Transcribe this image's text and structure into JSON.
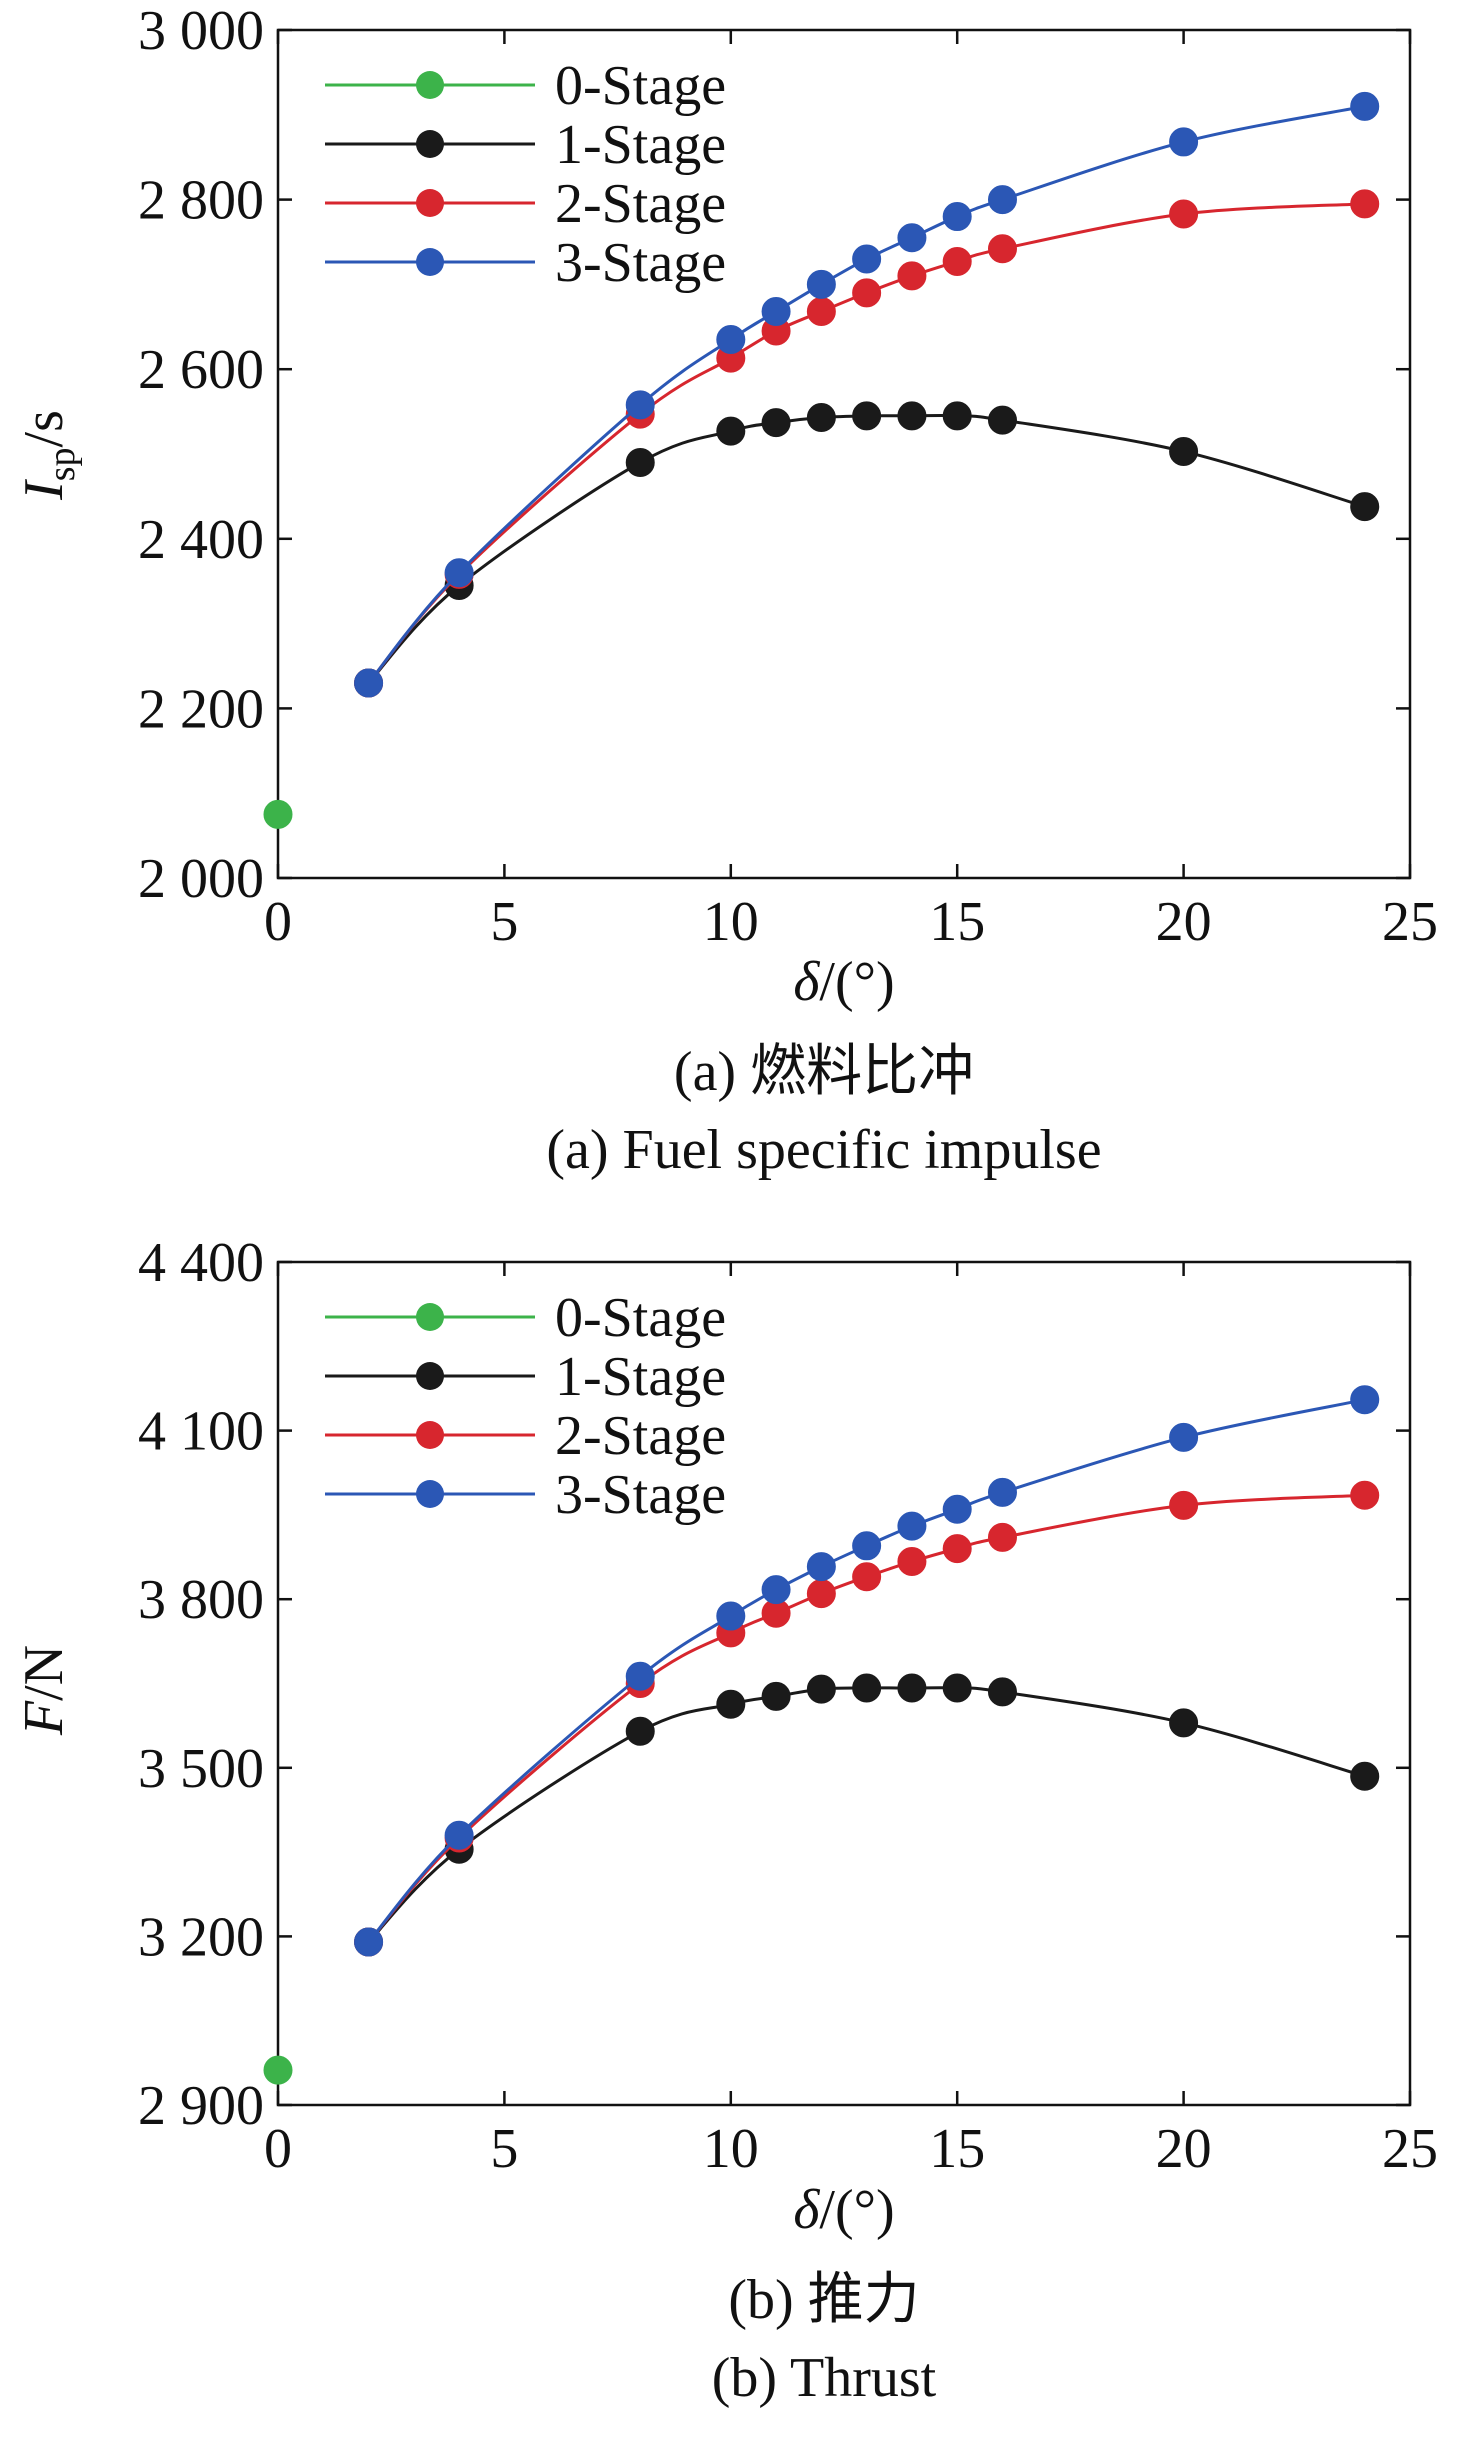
{
  "chart_data": [
    {
      "type": "line",
      "ylabel_main": "I",
      "ylabel_sub": "sp",
      "ylabel_unit": "/s",
      "xlabel_symbol": "δ",
      "xlabel_unit": "/(°)",
      "xlim": [
        0,
        25
      ],
      "ylim": [
        2000,
        3000
      ],
      "xticks": [
        0,
        5,
        10,
        15,
        20,
        25
      ],
      "yticks": [
        2000,
        2200,
        2400,
        2600,
        2800,
        3000
      ],
      "ytick_labels": [
        "2 000",
        "2 200",
        "2 400",
        "2 600",
        "2 800",
        "3 000"
      ],
      "legend_position": "top-left",
      "caption_cn": "(a) 燃料比冲",
      "caption_en": "(a) Fuel specific impulse",
      "series": [
        {
          "name": "0-Stage",
          "color": "#3cb34a",
          "x": [
            0
          ],
          "y": [
            2075
          ]
        },
        {
          "name": "1-Stage",
          "color": "#1a1a1a",
          "x": [
            2,
            4,
            8,
            10,
            11,
            12,
            13,
            14,
            15,
            16,
            20,
            24
          ],
          "y": [
            2230,
            2345,
            2490,
            2527,
            2537,
            2543,
            2545,
            2545,
            2545,
            2540,
            2503,
            2438
          ]
        },
        {
          "name": "2-Stage",
          "color": "#d7262e",
          "x": [
            2,
            4,
            8,
            10,
            11,
            12,
            13,
            14,
            15,
            16,
            20,
            24
          ],
          "y": [
            2230,
            2358,
            2547,
            2613,
            2645,
            2668,
            2690,
            2710,
            2727,
            2742,
            2783,
            2795
          ]
        },
        {
          "name": "3-Stage",
          "color": "#2b57b5",
          "x": [
            2,
            4,
            8,
            10,
            11,
            12,
            13,
            14,
            15,
            16,
            20,
            24
          ],
          "y": [
            2230,
            2360,
            2558,
            2635,
            2668,
            2700,
            2730,
            2755,
            2780,
            2800,
            2868,
            2910
          ]
        }
      ]
    },
    {
      "type": "line",
      "ylabel_main": "F",
      "ylabel_sub": "",
      "ylabel_unit": "/N",
      "xlabel_symbol": "δ",
      "xlabel_unit": "/(°)",
      "xlim": [
        0,
        25
      ],
      "ylim": [
        2900,
        4400
      ],
      "xticks": [
        0,
        5,
        10,
        15,
        20,
        25
      ],
      "yticks": [
        2900,
        3200,
        3500,
        3800,
        4100,
        4400
      ],
      "ytick_labels": [
        "2 900",
        "3 200",
        "3 500",
        "3 800",
        "4 100",
        "4 400"
      ],
      "legend_position": "top-left",
      "caption_cn": "(b) 推力",
      "caption_en": "(b) Thrust",
      "series": [
        {
          "name": "0-Stage",
          "color": "#3cb34a",
          "x": [
            0
          ],
          "y": [
            2962
          ]
        },
        {
          "name": "1-Stage",
          "color": "#1a1a1a",
          "x": [
            2,
            4,
            8,
            10,
            11,
            12,
            13,
            14,
            15,
            16,
            20,
            24
          ],
          "y": [
            3190,
            3355,
            3565,
            3613,
            3627,
            3640,
            3642,
            3642,
            3642,
            3635,
            3580,
            3485
          ]
        },
        {
          "name": "2-Stage",
          "color": "#d7262e",
          "x": [
            2,
            4,
            8,
            10,
            11,
            12,
            13,
            14,
            15,
            16,
            20,
            24
          ],
          "y": [
            3190,
            3375,
            3650,
            3740,
            3775,
            3810,
            3840,
            3867,
            3890,
            3910,
            3967,
            3985
          ]
        },
        {
          "name": "3-Stage",
          "color": "#2b57b5",
          "x": [
            2,
            4,
            8,
            10,
            11,
            12,
            13,
            14,
            15,
            16,
            20,
            24
          ],
          "y": [
            3190,
            3380,
            3663,
            3770,
            3817,
            3858,
            3895,
            3930,
            3960,
            3990,
            4088,
            4155
          ]
        }
      ]
    }
  ]
}
